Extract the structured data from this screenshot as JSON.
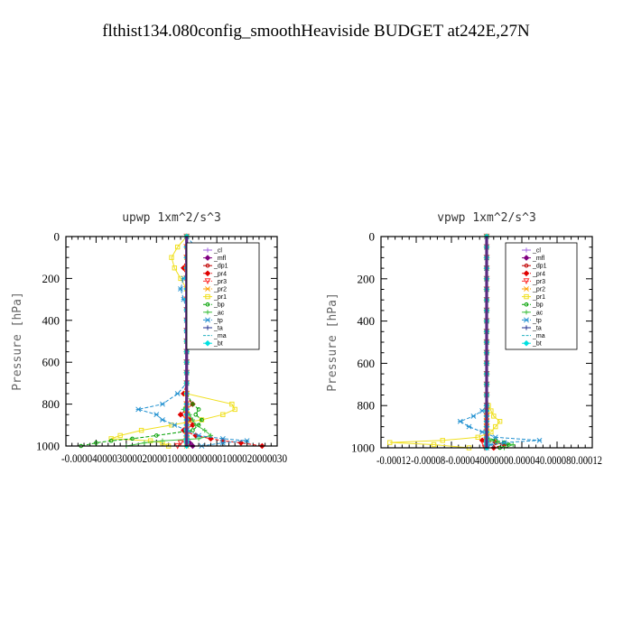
{
  "figure": {
    "suptitle": "flthist134.080config_smoothHeaviside  BUDGET at242E,27N"
  },
  "legend_series": [
    {
      "name": "_cl",
      "color": "#a060e0",
      "style": "solid",
      "marker": "cross"
    },
    {
      "name": "_mfl",
      "color": "#800080",
      "style": "solid",
      "marker": "diamond"
    },
    {
      "name": "_dp1",
      "color": "#c00000",
      "style": "solid",
      "marker": "dot"
    },
    {
      "name": "_pr4",
      "color": "#e00000",
      "style": "dashed",
      "marker": "diamond"
    },
    {
      "name": "_pr3",
      "color": "#ff3030",
      "style": "dashed",
      "marker": "tri"
    },
    {
      "name": "_pr2",
      "color": "#ffa000",
      "style": "dashed",
      "marker": "star"
    },
    {
      "name": "_pr1",
      "color": "#f0e020",
      "style": "solid",
      "marker": "square"
    },
    {
      "name": "_bp",
      "color": "#00a000",
      "style": "dashed",
      "marker": "dot"
    },
    {
      "name": "_ac",
      "color": "#40c040",
      "style": "solid",
      "marker": "cross"
    },
    {
      "name": "_tp",
      "color": "#2090d0",
      "style": "dashed",
      "marker": "star"
    },
    {
      "name": "_ta",
      "color": "#203090",
      "style": "solid",
      "marker": "cross"
    },
    {
      "name": "_ma",
      "color": "#20b0c0",
      "style": "dashed",
      "marker": "none"
    },
    {
      "name": "_bt",
      "color": "#00e0e0",
      "style": "solid",
      "marker": "diamond"
    }
  ],
  "chart_data": [
    {
      "type": "line",
      "title": "upwp   1xm^2/s^3",
      "ylabel": "Pressure [hPa]",
      "xlim": [
        -4e-05,
        3e-05
      ],
      "ylim": [
        1000,
        0
      ],
      "x_tick_labels": [
        "-0.00004",
        "-0.00003",
        "-0.00002",
        "-0.00001",
        "0.00000",
        "0.00001",
        "0.00002",
        "0.00003"
      ],
      "x_tick_label_text": "-0.0000400003000020000100000000001000020000030",
      "y_ticks": [
        0,
        200,
        400,
        600,
        800,
        1000
      ],
      "y_tick_labels": [
        "0",
        "200",
        "400",
        "600",
        "800",
        "1000"
      ],
      "legend": "top-right",
      "pressure_levels": [
        0,
        50,
        100,
        150,
        200,
        250,
        300,
        350,
        400,
        450,
        500,
        550,
        600,
        650,
        700,
        750,
        800,
        825,
        850,
        875,
        900,
        925,
        950,
        965,
        975,
        985,
        1000
      ],
      "series": [
        {
          "name": "_cl",
          "x": [
            0,
            0,
            0,
            0,
            0,
            0,
            0,
            0,
            0,
            0,
            0,
            0,
            0,
            0,
            0,
            0,
            0,
            0,
            0,
            0,
            0,
            0,
            0,
            0,
            0,
            0,
            0
          ]
        },
        {
          "name": "_mfl",
          "x": [
            0,
            0,
            0,
            0,
            0,
            0,
            0,
            0,
            0,
            0,
            0,
            0,
            0,
            0,
            0,
            0,
            0,
            0,
            0,
            0,
            0,
            0,
            0,
            0,
            0,
            1e-06,
            2e-06
          ]
        },
        {
          "name": "_dp1",
          "x": [
            0,
            0,
            0,
            0,
            0,
            0,
            0,
            0,
            0,
            0,
            0,
            0,
            0,
            0,
            0,
            0,
            0,
            0,
            0,
            0,
            0,
            0,
            0,
            0,
            0,
            0,
            0
          ]
        },
        {
          "name": "_pr4",
          "x": [
            0,
            0,
            0,
            -1e-06,
            0,
            0,
            0,
            0,
            1e-06,
            0,
            0,
            0,
            0,
            0,
            0,
            -1e-06,
            2e-06,
            0,
            -2e-06,
            1e-06,
            2e-06,
            -1e-06,
            3e-06,
            8e-06,
            1.2e-05,
            1.8e-05,
            2.5e-05
          ]
        },
        {
          "name": "_pr3",
          "x": [
            0,
            0,
            0,
            0,
            0,
            0,
            0,
            0,
            0,
            0,
            0,
            0,
            0,
            0,
            0,
            0,
            0,
            0,
            0,
            0,
            0,
            0,
            0,
            0,
            0,
            -2e-06,
            -3e-06
          ]
        },
        {
          "name": "_pr2",
          "x": [
            0,
            0,
            0,
            0,
            0,
            0,
            0,
            0,
            0,
            0,
            0,
            0,
            0,
            0,
            0,
            0,
            0,
            0,
            0,
            0,
            0,
            0,
            0,
            0,
            0,
            0,
            0
          ]
        },
        {
          "name": "_pr1",
          "x": [
            0,
            -3e-06,
            -5e-06,
            -4e-06,
            -2e-06,
            0,
            1e-06,
            1e-06,
            2e-06,
            1e-06,
            0,
            0,
            0,
            0,
            0,
            0,
            1.5e-05,
            1.6e-05,
            1.2e-05,
            5e-06,
            -5e-06,
            -1.5e-05,
            -2.2e-05,
            -2.5e-05,
            -1.2e-05,
            -8e-06,
            -6e-06
          ]
        },
        {
          "name": "_bp",
          "x": [
            0,
            0,
            0,
            0,
            0,
            0,
            0,
            0,
            0,
            0,
            0,
            0,
            0,
            0,
            0,
            0,
            2e-06,
            4e-06,
            3e-06,
            5e-06,
            4e-06,
            2e-06,
            -1e-05,
            -1.8e-05,
            -2.5e-05,
            -3e-05,
            -3.5e-05
          ]
        },
        {
          "name": "_ac",
          "x": [
            0,
            0,
            1e-06,
            2e-06,
            2e-06,
            1e-06,
            2e-06,
            3e-06,
            3e-06,
            2e-06,
            0,
            0,
            0,
            0,
            0,
            0,
            0,
            -1e-06,
            1e-06,
            2e-06,
            3e-06,
            6e-06,
            8e-06,
            4e-06,
            -8e-06,
            -1.4e-05,
            -2e-05
          ]
        },
        {
          "name": "_tp",
          "x": [
            0,
            3e-06,
            2e-06,
            1e-06,
            -1e-06,
            -2e-06,
            -1e-06,
            0,
            0,
            0,
            0,
            0,
            0,
            0,
            0,
            -3e-06,
            -8e-06,
            -1.6e-05,
            -1e-05,
            -8e-06,
            -4e-06,
            0,
            4e-06,
            1.2e-05,
            2e-05,
            1.2e-05,
            5e-06
          ]
        },
        {
          "name": "_ta",
          "x": [
            0,
            0,
            0,
            0,
            0,
            0,
            0,
            0,
            0,
            0,
            0,
            0,
            0,
            0,
            0,
            0,
            0,
            0,
            0,
            0,
            0,
            0,
            0,
            0,
            0,
            0,
            0
          ]
        },
        {
          "name": "_ma",
          "x": [
            0,
            0,
            0,
            0,
            0,
            0,
            0,
            0,
            0,
            0,
            0,
            0,
            0,
            0,
            0,
            0,
            0,
            0,
            0,
            0,
            0,
            0,
            0,
            0,
            0,
            0,
            0
          ]
        },
        {
          "name": "_bt",
          "x": [
            0,
            0,
            0,
            0,
            0,
            0,
            0,
            0,
            0,
            0,
            0,
            0,
            0,
            0,
            0,
            0,
            0,
            0,
            0,
            0,
            0,
            0,
            0,
            0,
            0,
            0,
            0
          ]
        }
      ]
    },
    {
      "type": "line",
      "title": "vpwp   1xm^2/s^3",
      "ylabel": "Pressure [hPa]",
      "xlim": [
        -0.00012,
        0.00012
      ],
      "ylim": [
        1000,
        0
      ],
      "x_tick_labels": [
        "-0.00012",
        "-0.00008",
        "-0.00004",
        "0.00000",
        "0.00004",
        "0.00008",
        "0.00012"
      ],
      "x_tick_label_text": "-0.00012-0.00008-0.000040000000.000040.000080.00012",
      "y_ticks": [
        0,
        200,
        400,
        600,
        800,
        1000
      ],
      "y_tick_labels": [
        "0",
        "200",
        "400",
        "600",
        "800",
        "1000"
      ],
      "legend": "top-right",
      "pressure_levels": [
        0,
        50,
        100,
        150,
        200,
        250,
        300,
        350,
        400,
        450,
        500,
        550,
        600,
        650,
        700,
        750,
        800,
        825,
        850,
        875,
        900,
        925,
        950,
        965,
        975,
        985,
        1000
      ],
      "series": [
        {
          "name": "_cl",
          "x": [
            0,
            0,
            0,
            0,
            0,
            0,
            0,
            0,
            0,
            0,
            0,
            0,
            0,
            0,
            0,
            0,
            0,
            0,
            0,
            0,
            0,
            0,
            0,
            0,
            0,
            0,
            0
          ]
        },
        {
          "name": "_mfl",
          "x": [
            0,
            0,
            0,
            0,
            0,
            0,
            0,
            0,
            0,
            0,
            0,
            0,
            0,
            0,
            0,
            0,
            0,
            0,
            0,
            0,
            0,
            0,
            0,
            0,
            0,
            0,
            0
          ]
        },
        {
          "name": "_dp1",
          "x": [
            0,
            0,
            0,
            0,
            0,
            0,
            0,
            0,
            0,
            0,
            0,
            0,
            0,
            0,
            0,
            0,
            0,
            0,
            0,
            0,
            0,
            0,
            0,
            0,
            0,
            0,
            0
          ]
        },
        {
          "name": "_pr4",
          "x": [
            0,
            0,
            0,
            0,
            0,
            0,
            0,
            0,
            0,
            0,
            0,
            0,
            0,
            0,
            0,
            0,
            0,
            0,
            0,
            0,
            0,
            0,
            0,
            -5e-06,
            1e-05,
            2e-05,
            8e-06
          ]
        },
        {
          "name": "_pr3",
          "x": [
            0,
            0,
            0,
            0,
            0,
            0,
            0,
            0,
            0,
            0,
            0,
            0,
            0,
            0,
            0,
            0,
            0,
            0,
            0,
            0,
            0,
            0,
            0,
            0,
            0,
            -3e-06,
            -2e-06
          ]
        },
        {
          "name": "_pr2",
          "x": [
            0,
            0,
            0,
            0,
            0,
            0,
            0,
            0,
            0,
            0,
            0,
            0,
            0,
            0,
            0,
            0,
            0,
            0,
            0,
            0,
            0,
            0,
            0,
            0,
            0,
            0,
            0
          ]
        },
        {
          "name": "_pr1",
          "x": [
            0,
            0,
            0,
            0,
            0,
            0,
            0,
            0,
            0,
            0,
            0,
            0,
            0,
            0,
            0,
            0,
            2e-06,
            5e-06,
            8e-06,
            1.5e-05,
            1e-05,
            5e-06,
            -1e-05,
            -5e-05,
            -0.00011,
            -6e-05,
            -2e-05
          ]
        },
        {
          "name": "_bp",
          "x": [
            0,
            0,
            0,
            0,
            0,
            0,
            0,
            0,
            0,
            0,
            0,
            0,
            0,
            0,
            0,
            0,
            0,
            0,
            0,
            0,
            0,
            0,
            0,
            1e-05,
            2e-05,
            2.5e-05,
            1.5e-05
          ]
        },
        {
          "name": "_ac",
          "x": [
            0,
            0,
            0,
            0,
            0,
            0,
            0,
            0,
            0,
            0,
            0,
            0,
            0,
            0,
            0,
            0,
            0,
            0,
            0,
            0,
            0,
            0,
            0,
            5e-06,
            1.2e-05,
            3e-05,
            2e-05
          ]
        },
        {
          "name": "_tp",
          "x": [
            0,
            0,
            0,
            0,
            0,
            0,
            0,
            0,
            0,
            0,
            0,
            0,
            0,
            0,
            0,
            0,
            0,
            -5e-06,
            -1.5e-05,
            -3e-05,
            -2e-05,
            -5e-06,
            1e-05,
            6e-05,
            2e-05,
            5e-06,
            0
          ]
        },
        {
          "name": "_ta",
          "x": [
            0,
            0,
            0,
            0,
            0,
            0,
            0,
            0,
            0,
            0,
            0,
            0,
            0,
            0,
            0,
            0,
            0,
            0,
            0,
            0,
            0,
            0,
            0,
            0,
            0,
            0,
            0
          ]
        },
        {
          "name": "_ma",
          "x": [
            0,
            0,
            0,
            0,
            0,
            0,
            0,
            0,
            0,
            0,
            0,
            0,
            0,
            0,
            0,
            0,
            0,
            0,
            0,
            0,
            0,
            0,
            0,
            0,
            0,
            0,
            0
          ]
        },
        {
          "name": "_bt",
          "x": [
            0,
            0,
            0,
            0,
            0,
            0,
            0,
            0,
            0,
            0,
            0,
            0,
            0,
            0,
            0,
            0,
            0,
            0,
            0,
            0,
            0,
            0,
            0,
            0,
            0,
            0,
            0
          ]
        }
      ]
    }
  ]
}
